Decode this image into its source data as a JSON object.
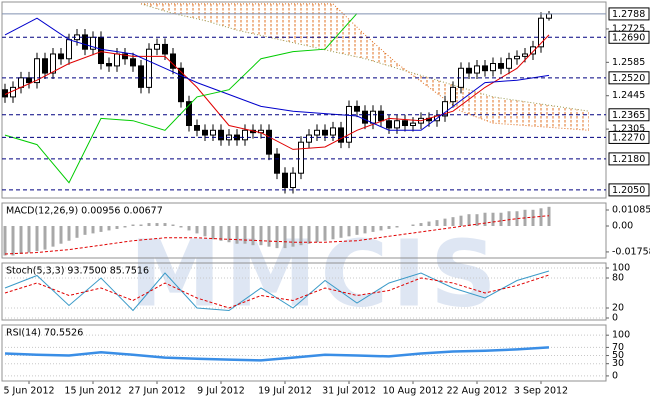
{
  "chart_data": [
    {
      "type": "candlestick",
      "watermark": "MMCIS",
      "categories": [
        null,
        null,
        null,
        "5 Jun 2012",
        null,
        null,
        null,
        null,
        null,
        null,
        null,
        "15 Jun 2012",
        null,
        null,
        null,
        null,
        null,
        null,
        null,
        "27 Jun 2012",
        null,
        null,
        null,
        null,
        null,
        null,
        null,
        "9 Jul 2012",
        null,
        null,
        null,
        null,
        null,
        null,
        null,
        "19 Jul 2012",
        null,
        null,
        null,
        null,
        null,
        null,
        null,
        "31 Jul 2012",
        null,
        null,
        null,
        null,
        null,
        null,
        null,
        "10 Aug 2012",
        null,
        null,
        null,
        null,
        null,
        null,
        null,
        "22 Aug 2012",
        null,
        null,
        null,
        null,
        null,
        null,
        null,
        "3 Sep 2012",
        null
      ],
      "open": [
        1.247,
        1.244,
        1.248,
        1.252,
        1.25,
        1.26,
        1.254,
        1.262,
        1.26,
        1.268,
        1.27,
        1.264,
        1.269,
        1.258,
        1.257,
        1.262,
        1.26,
        1.257,
        1.248,
        1.264,
        1.266,
        1.262,
        1.256,
        1.242,
        1.232,
        1.23,
        1.228,
        1.23,
        1.226,
        1.228,
        1.226,
        1.23,
        1.229,
        1.23,
        1.22,
        1.212,
        1.206,
        1.212,
        1.225,
        1.228,
        1.23,
        1.228,
        1.231,
        1.225,
        1.24,
        1.238,
        1.233,
        1.238,
        1.234,
        1.231,
        1.234,
        1.232,
        1.233,
        1.235,
        1.234,
        1.236,
        1.242,
        1.248,
        1.256,
        1.254,
        1.257,
        1.255,
        1.258,
        1.256,
        1.26,
        1.261,
        1.262,
        1.265,
        1.277
      ],
      "high": [
        1.2495,
        1.2505,
        1.2545,
        1.2545,
        1.2625,
        1.2625,
        1.2645,
        1.2645,
        1.2705,
        1.2725,
        1.2725,
        1.2715,
        1.2715,
        1.2605,
        1.2645,
        1.2645,
        1.2625,
        1.2595,
        1.2665,
        1.2685,
        1.2685,
        1.2645,
        1.2585,
        1.2445,
        1.2345,
        1.2325,
        1.2325,
        1.2325,
        1.2305,
        1.2305,
        1.2325,
        1.2325,
        1.2325,
        1.2325,
        1.2225,
        1.2145,
        1.2145,
        1.2275,
        1.2305,
        1.2325,
        1.2325,
        1.2335,
        1.2335,
        1.2425,
        1.2425,
        1.2405,
        1.2405,
        1.2405,
        1.2365,
        1.2365,
        1.2365,
        1.2355,
        1.2375,
        1.2375,
        1.2385,
        1.2445,
        1.2505,
        1.2585,
        1.2585,
        1.2595,
        1.2595,
        1.2605,
        1.2605,
        1.2625,
        1.2635,
        1.2645,
        1.2675,
        1.2795,
        1.28
      ],
      "low": [
        1.2415,
        1.2415,
        1.2455,
        1.2475,
        1.2475,
        1.2515,
        1.2515,
        1.2575,
        1.2575,
        1.2655,
        1.2615,
        1.2615,
        1.2555,
        1.2545,
        1.2545,
        1.2575,
        1.2545,
        1.2455,
        1.2455,
        1.2615,
        1.2595,
        1.2535,
        1.2395,
        1.2295,
        1.2275,
        1.2255,
        1.2255,
        1.2235,
        1.2235,
        1.2235,
        1.2235,
        1.2265,
        1.2265,
        1.2175,
        1.2095,
        1.2035,
        1.2035,
        1.2095,
        1.2225,
        1.2255,
        1.2255,
        1.2255,
        1.2225,
        1.2225,
        1.2355,
        1.2305,
        1.2305,
        1.2315,
        1.2285,
        1.2285,
        1.2295,
        1.2295,
        1.2305,
        1.2315,
        1.2315,
        1.2335,
        1.2395,
        1.2455,
        1.2515,
        1.2515,
        1.2525,
        1.2525,
        1.2535,
        1.2535,
        1.2575,
        1.2585,
        1.2595,
        1.2625,
        1.276
      ],
      "close": [
        1.244,
        1.248,
        1.252,
        1.25,
        1.26,
        1.254,
        1.262,
        1.26,
        1.268,
        1.27,
        1.264,
        1.269,
        1.258,
        1.257,
        1.262,
        1.26,
        1.257,
        1.248,
        1.264,
        1.266,
        1.262,
        1.256,
        1.242,
        1.232,
        1.23,
        1.228,
        1.23,
        1.226,
        1.228,
        1.226,
        1.23,
        1.229,
        1.23,
        1.22,
        1.212,
        1.206,
        1.212,
        1.225,
        1.228,
        1.23,
        1.228,
        1.231,
        1.225,
        1.24,
        1.238,
        1.233,
        1.238,
        1.234,
        1.231,
        1.234,
        1.232,
        1.233,
        1.235,
        1.234,
        1.236,
        1.242,
        1.248,
        1.256,
        1.254,
        1.257,
        1.255,
        1.258,
        1.256,
        1.26,
        1.261,
        1.262,
        1.265,
        1.277,
        1.2788
      ],
      "up_color": "#ffffff",
      "down_color": "#000000",
      "ylim": [
        1.2016,
        1.2838
      ],
      "yticks": [
        1.2725,
        1.2585,
        1.2445,
        1.2305
      ],
      "price_lines": [
        1.2788,
        {
          "value": 1.269,
          "label": "1.2690"
        },
        {
          "value": 1.252,
          "label": "1.2520"
        },
        1.2365,
        {
          "value": 1.227,
          "label": "1.2270"
        },
        {
          "value": 1.218,
          "label": "1.2180"
        },
        {
          "value": 1.205,
          "label": "1.2050"
        }
      ],
      "cloud": {
        "color": "#e07020",
        "x": [
          17,
          21,
          25,
          29,
          33,
          37,
          41,
          45,
          49,
          53,
          57,
          61,
          65,
          69,
          73
        ],
        "span_a": [
          1.283,
          1.279,
          1.276,
          1.272,
          1.269,
          1.266,
          1.263,
          1.26,
          1.256,
          1.252,
          1.248,
          1.244,
          1.242,
          1.24,
          1.238
        ],
        "span_b": [
          1.283,
          1.283,
          1.283,
          1.283,
          1.283,
          1.283,
          1.283,
          1.27,
          1.258,
          1.248,
          1.238,
          1.233,
          1.232,
          1.231,
          1.23
        ]
      },
      "series": [
        {
          "color": "#e00000",
          "x": [
            0,
            4,
            8,
            12,
            16,
            20,
            24,
            28,
            32,
            36,
            40,
            44,
            48,
            52,
            56,
            60,
            64,
            68
          ],
          "values": [
            1.245,
            1.251,
            1.258,
            1.263,
            1.261,
            1.261,
            1.248,
            1.232,
            1.229,
            1.222,
            1.223,
            1.23,
            1.235,
            1.234,
            1.238,
            1.248,
            1.256,
            1.27
          ]
        },
        {
          "color": "#0000cc",
          "x": [
            0,
            4,
            8,
            12,
            16,
            20,
            24,
            28,
            32,
            36,
            40,
            44,
            48,
            52,
            56,
            60,
            64,
            68
          ],
          "values": [
            1.27,
            1.277,
            1.268,
            1.264,
            1.262,
            1.256,
            1.25,
            1.245,
            1.24,
            1.238,
            1.237,
            1.236,
            1.23,
            1.23,
            1.24,
            1.25,
            1.251,
            1.253
          ]
        },
        {
          "color": "#00cc00",
          "x": [
            0,
            4,
            8,
            12,
            16,
            20,
            24,
            28,
            32,
            36,
            40,
            44
          ],
          "values": [
            1.228,
            1.224,
            1.208,
            1.235,
            1.234,
            1.23,
            1.244,
            1.247,
            1.26,
            1.263,
            1.264,
            1.279
          ]
        }
      ]
    },
    {
      "type": "macd",
      "title": "MACD(12,26,9) 0.00956 0.00677",
      "color": "#a8a8a8",
      "values": [
        -0.02,
        -0.02,
        -0.019,
        -0.018,
        -0.017,
        -0.016,
        -0.014,
        -0.012,
        -0.01,
        -0.008,
        -0.006,
        -0.005,
        -0.004,
        -0.003,
        -0.002,
        -0.001,
        0.001,
        0.001,
        0.002,
        0.002,
        0.002,
        0.001,
        -0.001,
        -0.003,
        -0.005,
        -0.007,
        -0.009,
        -0.01,
        -0.011,
        -0.012,
        -0.012,
        -0.013,
        -0.013,
        -0.014,
        -0.015,
        -0.015,
        -0.014,
        -0.013,
        -0.012,
        -0.011,
        -0.01,
        -0.009,
        -0.008,
        -0.007,
        -0.006,
        -0.005,
        -0.004,
        -0.003,
        -0.002,
        -0.001,
        0.0,
        0.001,
        0.002,
        0.003,
        0.004,
        0.005,
        0.006,
        0.007,
        0.008,
        0.008,
        0.009,
        0.009,
        0.009,
        0.01,
        0.01,
        0.011,
        0.011,
        0.012,
        0.013
      ],
      "series": [
        {
          "color": "#e00000",
          "x": [
            0,
            4,
            8,
            12,
            16,
            20,
            24,
            28,
            32,
            36,
            40,
            44,
            48,
            52,
            56,
            60,
            64,
            68
          ],
          "values": [
            -0.019,
            -0.018,
            -0.016,
            -0.013,
            -0.01,
            -0.008,
            -0.008,
            -0.009,
            -0.01,
            -0.011,
            -0.011,
            -0.01,
            -0.007,
            -0.004,
            -0.001,
            0.002,
            0.005,
            0.007
          ]
        }
      ],
      "ylim": [
        -0.0217,
        0.0156
      ],
      "yticks": [
        0.01085,
        {
          "value": 0,
          "label": "0.00"
        },
        -0.01758
      ]
    },
    {
      "type": "oscillator",
      "title": "Stoch(5,3,3) 93.7500 85.7516",
      "series": [
        {
          "color": "#3a9ac8",
          "x": [
            0,
            4,
            8,
            12,
            16,
            20,
            24,
            28,
            32,
            36,
            40,
            44,
            48,
            52,
            56,
            60,
            64,
            68
          ],
          "values": [
            60,
            85,
            25,
            80,
            15,
            90,
            20,
            15,
            60,
            20,
            75,
            30,
            70,
            90,
            60,
            40,
            75,
            94
          ]
        },
        {
          "color": "#e00000",
          "x": [
            0,
            4,
            8,
            12,
            16,
            20,
            24,
            28,
            32,
            36,
            40,
            44,
            48,
            52,
            56,
            60,
            64,
            68
          ],
          "values": [
            50,
            70,
            45,
            60,
            35,
            70,
            40,
            20,
            45,
            35,
            60,
            45,
            55,
            80,
            70,
            50,
            65,
            86
          ]
        }
      ],
      "ylim": [
        -4,
        110
      ],
      "yticks": [
        100,
        80,
        20,
        0
      ]
    },
    {
      "type": "oscillator",
      "title": "RSI(14) 70.5526",
      "series": [
        {
          "color": "#3a8ee6",
          "x": [
            0,
            4,
            8,
            12,
            16,
            20,
            24,
            28,
            32,
            36,
            40,
            44,
            48,
            52,
            56,
            60,
            64,
            68
          ],
          "values": [
            55,
            52,
            50,
            58,
            52,
            45,
            42,
            40,
            38,
            45,
            52,
            50,
            48,
            55,
            60,
            62,
            65,
            70
          ]
        }
      ],
      "ylim": [
        -12.5,
        125
      ],
      "yticks": [
        100,
        70,
        50,
        30,
        0
      ]
    }
  ]
}
